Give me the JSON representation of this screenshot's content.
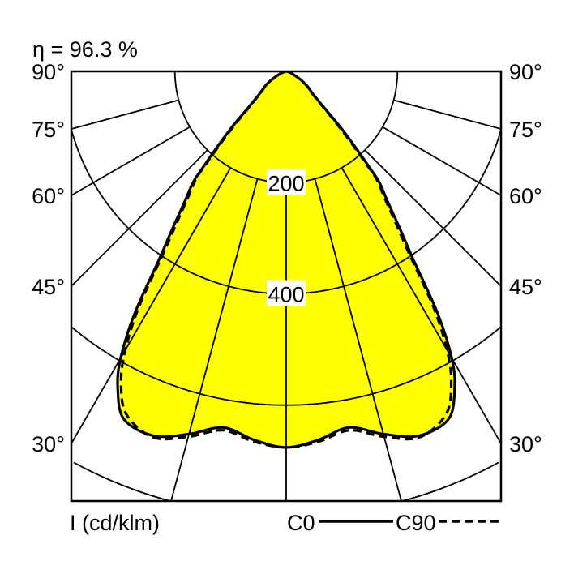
{
  "chart_data": {
    "type": "polar",
    "efficiency_label": "η = 96.3 %",
    "unit_label": "I (cd/klm)",
    "angle_tick_labels": [
      "90°",
      "75°",
      "60°",
      "45°",
      "30°"
    ],
    "angle_ticks": [
      90,
      75,
      60,
      45,
      30
    ],
    "radial_grid": [
      200,
      400,
      600,
      800
    ],
    "radial_tick_labels": [
      "200",
      "400"
    ],
    "radial_grid_angles": [
      0,
      15,
      30,
      45,
      60,
      75
    ],
    "rmax": 800,
    "fill_color": "#ffff00",
    "grid": true,
    "legend_position": "bottom-right",
    "series": [
      {
        "name": "C0",
        "style": "solid",
        "angles": [
          0,
          5,
          10,
          15,
          20,
          25,
          28,
          30,
          32,
          34,
          36,
          38,
          40,
          41,
          42,
          44,
          46,
          50,
          55,
          60,
          70,
          80,
          90
        ],
        "values": [
          676,
          665,
          650,
          675,
          697,
          690,
          645,
          595,
          515,
          410,
          345,
          295,
          260,
          225,
          195,
          145,
          98,
          62,
          46,
          30,
          10,
          3,
          0
        ]
      },
      {
        "name": "C90",
        "style": "dashed",
        "angles": [
          0,
          5,
          10,
          15,
          20,
          25,
          28,
          30,
          32,
          34,
          36,
          38,
          40,
          41,
          42,
          44,
          46,
          50,
          55,
          60,
          70,
          80,
          90
        ],
        "values": [
          676,
          668,
          655,
          680,
          700,
          680,
          632,
          578,
          500,
          395,
          332,
          286,
          252,
          215,
          182,
          132,
          92,
          60,
          45,
          30,
          10,
          3,
          0
        ]
      }
    ]
  }
}
